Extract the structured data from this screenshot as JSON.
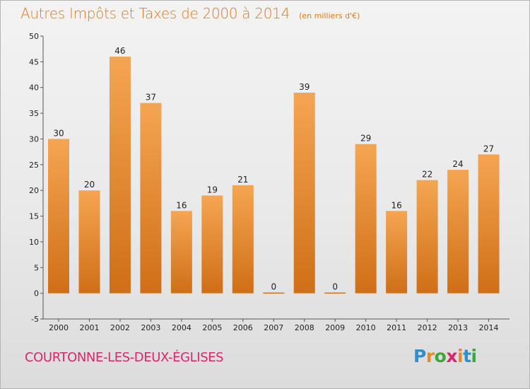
{
  "title": "Autres Impôts et Taxes de 2000 à 2014",
  "subtitle": "(en milliers d'€)",
  "location": "COURTONNE-LES-DEUX-ÉGLISES",
  "logo": {
    "letters": [
      "P",
      "r",
      "o",
      "x",
      "i",
      "t",
      "i"
    ],
    "colors": [
      "#2d8fd0",
      "#e98a22",
      "#3fa63b",
      "#d7276d",
      "#e98a22",
      "#2d8fd0",
      "#3fa63b"
    ]
  },
  "colors": {
    "bar_top": "#f5a552",
    "bar_bottom": "#cf6f17",
    "title": "#e07a1a",
    "location": "#d7276d"
  },
  "chart_data": {
    "type": "bar",
    "title": "Autres Impôts et Taxes de 2000 à 2014",
    "subtitle": "(en milliers d'€)",
    "categories": [
      "2000",
      "2001",
      "2002",
      "2003",
      "2004",
      "2005",
      "2006",
      "2007",
      "2008",
      "2009",
      "2010",
      "2011",
      "2012",
      "2013",
      "2014"
    ],
    "values": [
      30,
      20,
      46,
      37,
      16,
      19,
      21,
      0,
      39,
      0,
      29,
      16,
      22,
      24,
      27
    ],
    "ylim": [
      -5,
      50
    ],
    "yticks": [
      -5,
      0,
      5,
      10,
      15,
      20,
      25,
      30,
      35,
      40,
      45,
      50
    ],
    "grid": false,
    "data_labels": true
  }
}
